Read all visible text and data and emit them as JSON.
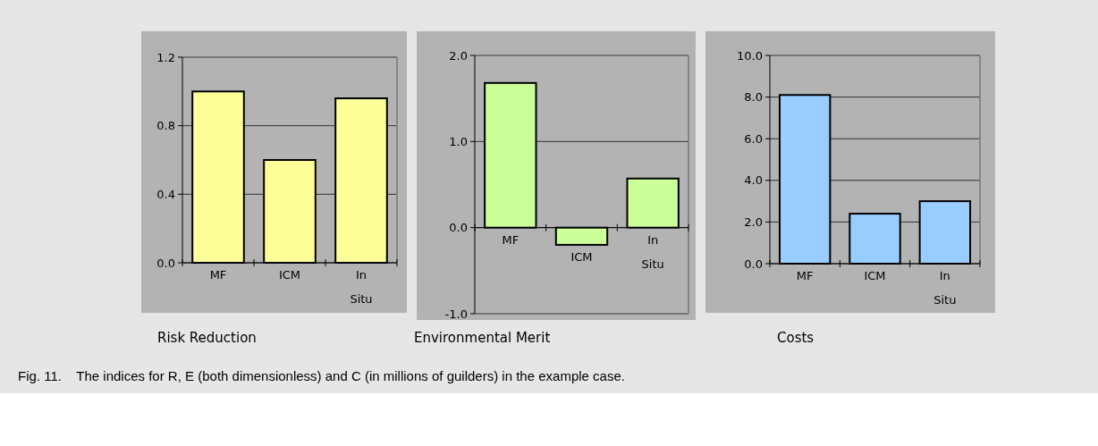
{
  "chart_data": [
    {
      "type": "bar",
      "title": "Risk Reduction",
      "categories": [
        "MF",
        "ICM",
        "In Situ"
      ],
      "series": [
        {
          "color": "#ffff99",
          "values": [
            1.0,
            0.6,
            0.96
          ]
        }
      ],
      "ylim": [
        0,
        1.2
      ],
      "yticks": [
        {
          "value": 0,
          "label": "0.0"
        },
        0.4,
        0.8,
        1.2
      ],
      "grid": "y",
      "annotations": [
        "Fig. 11.    The indices for R, E (both dimensionless) and C (in millions of guilders) in the example case."
      ]
    },
    {
      "type": "bar",
      "title": "Environmental Merit",
      "categories": [
        "MF",
        "ICM",
        "In Situ"
      ],
      "series": [
        {
          "color": "#ccff99",
          "values": [
            1.68,
            -0.2,
            0.57
          ]
        }
      ],
      "ylim": [
        -1,
        2
      ],
      "yticks": [
        {
          "value": -1,
          "label": "-1.0"
        },
        {
          "value": 0,
          "label": "0.0"
        },
        {
          "value": 1,
          "label": "1.0"
        },
        {
          "value": 2,
          "label": "2.0"
        }
      ],
      "grid": "y"
    },
    {
      "type": "bar",
      "title": "Costs",
      "categories": [
        "MF",
        "ICM",
        "In Situ"
      ],
      "series": [
        {
          "color": "#99ccff",
          "values": [
            8.1,
            2.4,
            3.0
          ]
        }
      ],
      "ylim": [
        0,
        10
      ],
      "yticks": [
        {
          "value": 0,
          "label": "0.0"
        },
        {
          "value": 2,
          "label": "2.0"
        },
        {
          "value": 4,
          "label": "4.0"
        },
        {
          "value": 6,
          "label": "6.0"
        },
        {
          "value": 8,
          "label": "8.0"
        },
        {
          "value": 10,
          "label": "10.0"
        }
      ],
      "grid": "y"
    }
  ]
}
